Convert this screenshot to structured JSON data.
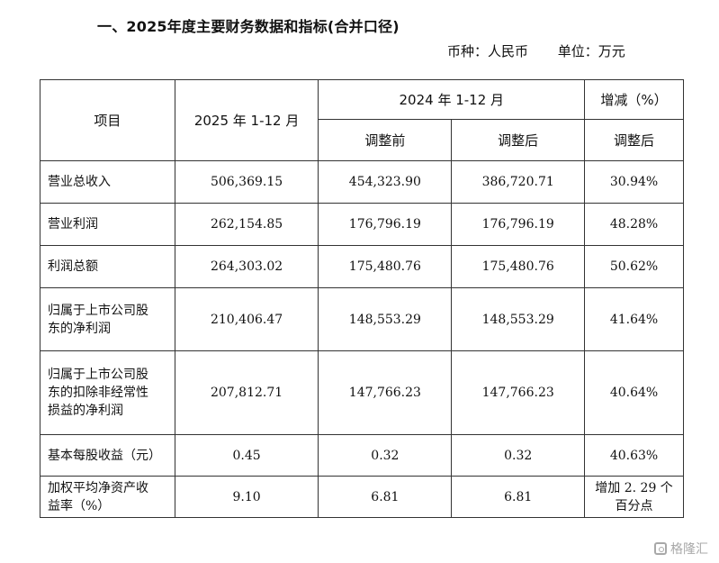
{
  "heading": {
    "title": "一、2025年度主要财务数据和指标(合并口径)",
    "currency": "币种：人民币",
    "unit": "单位：万元"
  },
  "table": {
    "headers": {
      "item": "项目",
      "current_period": "2025 年 1-12 月",
      "prior_period": "2024 年 1-12 月",
      "before_adjust": "调整前",
      "after_adjust": "调整后",
      "change": "增减（%）",
      "change_after_adjust": "调整后"
    },
    "rows": [
      {
        "label": "营业总收入",
        "current": "506,369.15",
        "before": "454,323.90",
        "after": "386,720.71",
        "change": "30.94%"
      },
      {
        "label": "营业利润",
        "current": "262,154.85",
        "before": "176,796.19",
        "after": "176,796.19",
        "change": "48.28%"
      },
      {
        "label": "利润总额",
        "current": "264,303.02",
        "before": "175,480.76",
        "after": "175,480.76",
        "change": "50.62%"
      },
      {
        "label_lines": [
          "归属于上市公司股",
          "东的净利润"
        ],
        "current": "210,406.47",
        "before": "148,553.29",
        "after": "148,553.29",
        "change": "41.64%"
      },
      {
        "label_lines": [
          "归属于上市公司股",
          "东的扣除非经常性",
          "损益的净利润"
        ],
        "current": "207,812.71",
        "before": "147,766.23",
        "after": "147,766.23",
        "change": "40.64%"
      },
      {
        "label": "基本每股收益（元）",
        "current": "0.45",
        "before": "0.32",
        "after": "0.32",
        "change": "40.63%"
      },
      {
        "label_lines": [
          "加权平均净资产收",
          "益率（%）"
        ],
        "current": "9.10",
        "before": "6.81",
        "after": "6.81",
        "change_lines": [
          "增加 2. 29 个",
          "百分点"
        ]
      }
    ]
  },
  "watermark": {
    "text": "格隆汇",
    "icon": "gelonghui-logo-icon"
  }
}
